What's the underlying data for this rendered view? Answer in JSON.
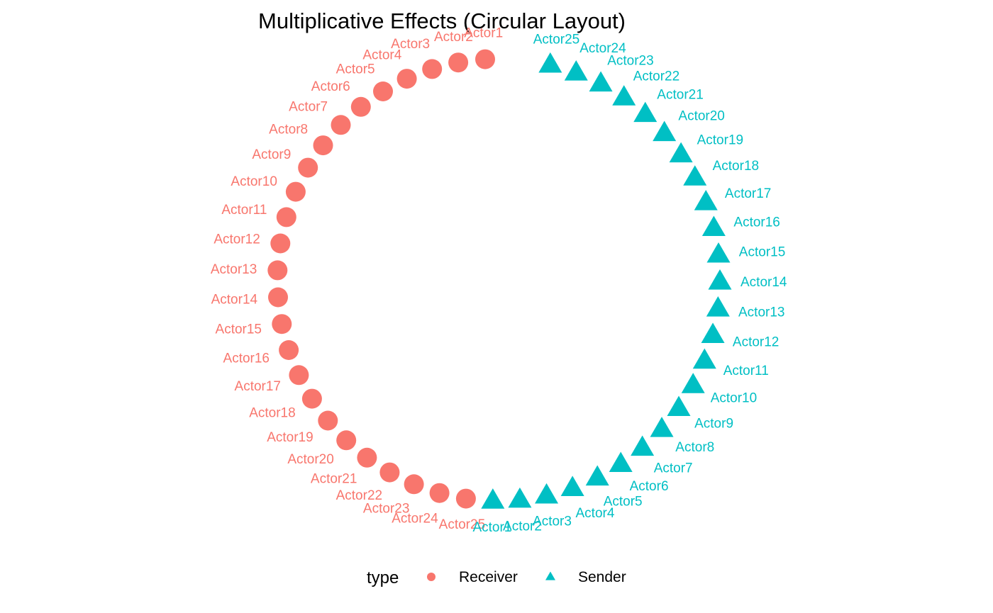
{
  "chart_data": {
    "type": "scatter",
    "title": "Multiplicative Effects (Circular Layout)",
    "layout": "circular",
    "grid": false,
    "legend": {
      "title": "type",
      "position": "bottom",
      "entries": [
        {
          "label": "Receiver",
          "shape": "circle",
          "color": "#F8766D"
        },
        {
          "label": "Sender",
          "shape": "triangle",
          "color": "#00BFC4"
        }
      ]
    },
    "series": [
      {
        "name": "Receiver",
        "shape": "circle",
        "color": "#F8766D",
        "nodes": [
          "Actor1",
          "Actor2",
          "Actor3",
          "Actor4",
          "Actor5",
          "Actor6",
          "Actor7",
          "Actor8",
          "Actor9",
          "Actor10",
          "Actor11",
          "Actor12",
          "Actor13",
          "Actor14",
          "Actor15",
          "Actor16",
          "Actor17",
          "Actor18",
          "Actor19",
          "Actor20",
          "Actor21",
          "Actor22",
          "Actor23",
          "Actor24",
          "Actor25"
        ]
      },
      {
        "name": "Sender",
        "shape": "triangle",
        "color": "#00BFC4",
        "nodes": [
          "Actor1",
          "Actor2",
          "Actor3",
          "Actor4",
          "Actor5",
          "Actor6",
          "Actor7",
          "Actor8",
          "Actor9",
          "Actor10",
          "Actor11",
          "Actor12",
          "Actor13",
          "Actor14",
          "Actor15",
          "Actor16",
          "Actor17",
          "Actor18",
          "Actor19",
          "Actor20",
          "Actor21",
          "Actor22",
          "Actor23",
          "Actor24",
          "Actor25"
        ]
      }
    ]
  }
}
